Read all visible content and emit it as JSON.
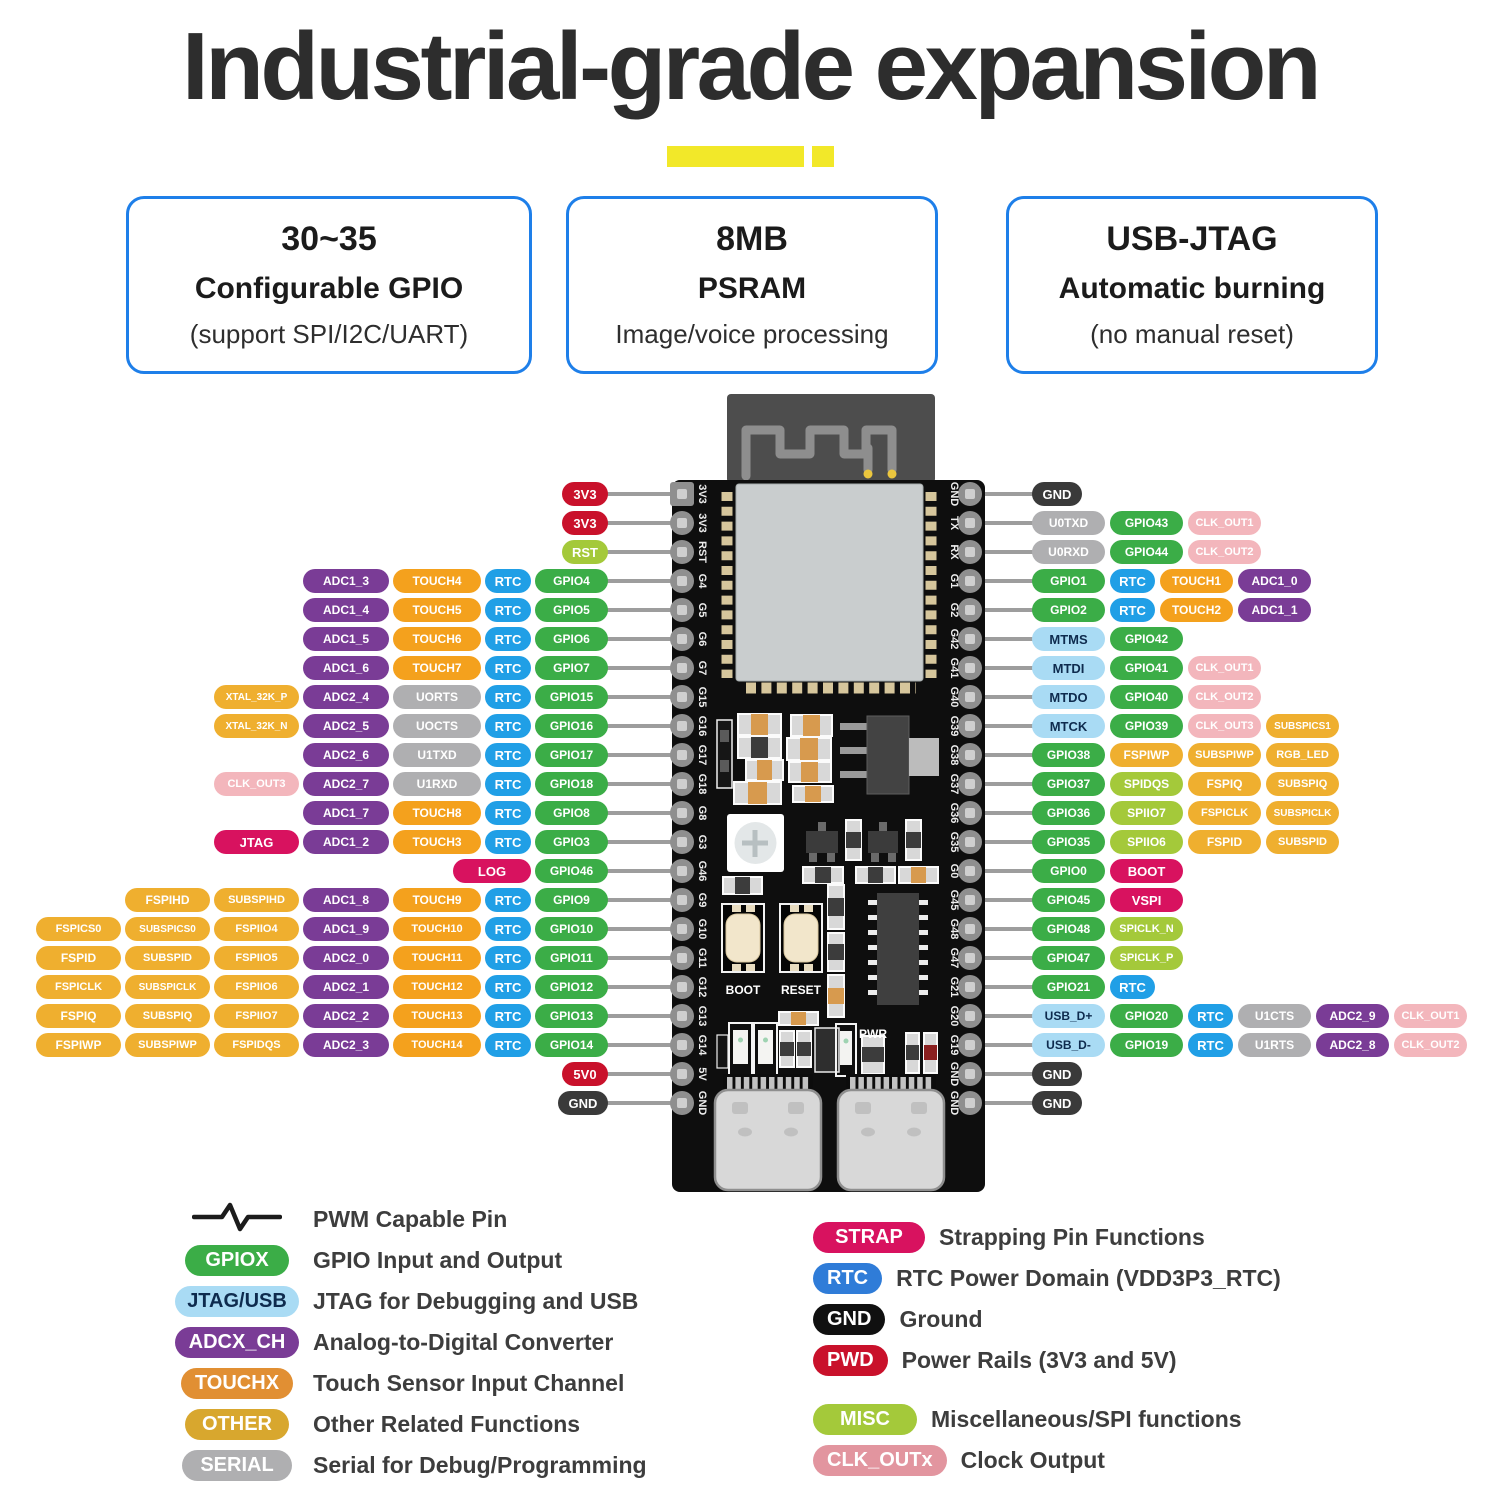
{
  "title": "Industrial-grade expansion",
  "feature_cards": [
    {
      "line1": "30~35",
      "line2": "Configurable GPIO",
      "line3": "(support SPI/I2C/UART)"
    },
    {
      "line1": "8MB",
      "line2": "PSRAM",
      "line3": "Image/voice processing"
    },
    {
      "line1": "USB-JTAG",
      "line2": "Automatic burning",
      "line3": "(no manual reset)"
    }
  ],
  "board": {
    "left_pin_labels": [
      "3V3",
      "3V3",
      "RST",
      "G4",
      "G5",
      "G6",
      "G7",
      "G15",
      "G16",
      "G17",
      "G18",
      "G8",
      "G3",
      "G46",
      "G9",
      "G10",
      "G11",
      "G12",
      "G13",
      "G14",
      "5V",
      "GND"
    ],
    "right_pin_labels": [
      "GND",
      "TX",
      "RX",
      "G1",
      "G2",
      "G42",
      "G41",
      "G40",
      "G39",
      "G38",
      "G37",
      "G36",
      "G35",
      "G0",
      "G45",
      "G48",
      "G47",
      "G21",
      "G20",
      "G19",
      "GND",
      "GND"
    ],
    "silkscreen": {
      "boot": "BOOT",
      "reset": "RESET",
      "pwr": "PWR",
      "tx_rx": "TX RX"
    }
  },
  "pin_rows": {
    "left": [
      [
        [
          "3V3",
          "pwd"
        ]
      ],
      [
        [
          "3V3",
          "pwd"
        ]
      ],
      [
        [
          "RST",
          "misc"
        ]
      ],
      [
        [
          "ADC1_3",
          "adc"
        ],
        [
          "TOUCH4",
          "touch"
        ],
        [
          "RTC",
          "rtc"
        ],
        [
          "GPIO4",
          "gpio"
        ]
      ],
      [
        [
          "ADC1_4",
          "adc"
        ],
        [
          "TOUCH5",
          "touch"
        ],
        [
          "RTC",
          "rtc"
        ],
        [
          "GPIO5",
          "gpio"
        ]
      ],
      [
        [
          "ADC1_5",
          "adc"
        ],
        [
          "TOUCH6",
          "touch"
        ],
        [
          "RTC",
          "rtc"
        ],
        [
          "GPIO6",
          "gpio"
        ]
      ],
      [
        [
          "ADC1_6",
          "adc"
        ],
        [
          "TOUCH7",
          "touch"
        ],
        [
          "RTC",
          "rtc"
        ],
        [
          "GPIO7",
          "gpio"
        ]
      ],
      [
        [
          "XTAL_32K_P",
          "other"
        ],
        [
          "ADC2_4",
          "adc"
        ],
        [
          "UORTS",
          "serial"
        ],
        [
          "RTC",
          "rtc"
        ],
        [
          "GPIO15",
          "gpio"
        ]
      ],
      [
        [
          "XTAL_32K_N",
          "other"
        ],
        [
          "ADC2_5",
          "adc"
        ],
        [
          "UOCTS",
          "serial"
        ],
        [
          "RTC",
          "rtc"
        ],
        [
          "GPIO16",
          "gpio"
        ]
      ],
      [
        [
          "ADC2_6",
          "adc"
        ],
        [
          "U1TXD",
          "serial"
        ],
        [
          "RTC",
          "rtc"
        ],
        [
          "GPIO17",
          "gpio"
        ]
      ],
      [
        [
          "CLK_OUT3",
          "clk"
        ],
        [
          "ADC2_7",
          "adc"
        ],
        [
          "U1RXD",
          "serial"
        ],
        [
          "RTC",
          "rtc"
        ],
        [
          "GPIO18",
          "gpio"
        ]
      ],
      [
        [
          "ADC1_7",
          "adc"
        ],
        [
          "TOUCH8",
          "touch"
        ],
        [
          "RTC",
          "rtc"
        ],
        [
          "GPIO8",
          "gpio"
        ]
      ],
      [
        [
          "JTAG",
          "strap"
        ],
        [
          "ADC1_2",
          "adc"
        ],
        [
          "TOUCH3",
          "touch"
        ],
        [
          "RTC",
          "rtc"
        ],
        [
          "GPIO3",
          "gpio"
        ]
      ],
      [
        [
          "LOG",
          "strap",
          78
        ],
        [
          "GPIO46",
          "gpio"
        ]
      ],
      [
        [
          "FSPIHD",
          "other"
        ],
        [
          "SUBSPIHD",
          "other"
        ],
        [
          "ADC1_8",
          "adc"
        ],
        [
          "TOUCH9",
          "touch"
        ],
        [
          "RTC",
          "rtc"
        ],
        [
          "GPIO9",
          "gpio"
        ]
      ],
      [
        [
          "FSPICS0",
          "other"
        ],
        [
          "SUBSPICS0",
          "other"
        ],
        [
          "FSPIIO4",
          "other"
        ],
        [
          "ADC1_9",
          "adc"
        ],
        [
          "TOUCH10",
          "touch"
        ],
        [
          "RTC",
          "rtc"
        ],
        [
          "GPIO10",
          "gpio"
        ]
      ],
      [
        [
          "FSPID",
          "other"
        ],
        [
          "SUBSPID",
          "other"
        ],
        [
          "FSPIIO5",
          "other"
        ],
        [
          "ADC2_0",
          "adc"
        ],
        [
          "TOUCH11",
          "touch"
        ],
        [
          "RTC",
          "rtc"
        ],
        [
          "GPIO11",
          "gpio"
        ]
      ],
      [
        [
          "FSPICLK",
          "other"
        ],
        [
          "SUBSPICLK",
          "other"
        ],
        [
          "FSPIIO6",
          "other"
        ],
        [
          "ADC2_1",
          "adc"
        ],
        [
          "TOUCH12",
          "touch"
        ],
        [
          "RTC",
          "rtc"
        ],
        [
          "GPIO12",
          "gpio"
        ]
      ],
      [
        [
          "FSPIQ",
          "other"
        ],
        [
          "SUBSPIQ",
          "other"
        ],
        [
          "FSPIIO7",
          "other"
        ],
        [
          "ADC2_2",
          "adc"
        ],
        [
          "TOUCH13",
          "touch"
        ],
        [
          "RTC",
          "rtc"
        ],
        [
          "GPIO13",
          "gpio"
        ]
      ],
      [
        [
          "FSPIWP",
          "other"
        ],
        [
          "SUBSPIWP",
          "other"
        ],
        [
          "FSPIDQS",
          "other"
        ],
        [
          "ADC2_3",
          "adc"
        ],
        [
          "TOUCH14",
          "touch"
        ],
        [
          "RTC",
          "rtc"
        ],
        [
          "GPIO14",
          "gpio"
        ]
      ],
      [
        [
          "5V0",
          "pwd"
        ]
      ],
      [
        [
          "GND",
          "gnd"
        ]
      ]
    ],
    "right": [
      [
        [
          "GND",
          "gnd"
        ]
      ],
      [
        [
          "U0TXD",
          "serial"
        ],
        [
          "GPIO43",
          "gpio"
        ],
        [
          "CLK_OUT1",
          "clk"
        ]
      ],
      [
        [
          "U0RXD",
          "serial"
        ],
        [
          "GPIO44",
          "gpio"
        ],
        [
          "CLK_OUT2",
          "clk"
        ]
      ],
      [
        [
          "GPIO1",
          "gpio"
        ],
        [
          "RTC",
          "rtc"
        ],
        [
          "TOUCH1",
          "touch"
        ],
        [
          "ADC1_0",
          "adc"
        ]
      ],
      [
        [
          "GPIO2",
          "gpio"
        ],
        [
          "RTC",
          "rtc"
        ],
        [
          "TOUCH2",
          "touch"
        ],
        [
          "ADC1_1",
          "adc"
        ]
      ],
      [
        [
          "MTMS",
          "jtagusb"
        ],
        [
          "GPIO42",
          "gpio"
        ]
      ],
      [
        [
          "MTDI",
          "jtagusb"
        ],
        [
          "GPIO41",
          "gpio"
        ],
        [
          "CLK_OUT1",
          "clk"
        ]
      ],
      [
        [
          "MTDO",
          "jtagusb"
        ],
        [
          "GPIO40",
          "gpio"
        ],
        [
          "CLK_OUT2",
          "clk"
        ]
      ],
      [
        [
          "MTCK",
          "jtagusb"
        ],
        [
          "GPIO39",
          "gpio"
        ],
        [
          "CLK_OUT3",
          "clk"
        ],
        [
          "SUBSPICS1",
          "other"
        ]
      ],
      [
        [
          "GPIO38",
          "gpio"
        ],
        [
          "FSPIWP",
          "other"
        ],
        [
          "SUBSPIWP",
          "other"
        ],
        [
          "RGB_LED",
          "other"
        ]
      ],
      [
        [
          "GPIO37",
          "gpio"
        ],
        [
          "SPIDQS",
          "misc"
        ],
        [
          "FSPIQ",
          "other"
        ],
        [
          "SUBSPIQ",
          "other"
        ]
      ],
      [
        [
          "GPIO36",
          "gpio"
        ],
        [
          "SPIIO7",
          "misc"
        ],
        [
          "FSPICLK",
          "other"
        ],
        [
          "SUBSPICLK",
          "other"
        ]
      ],
      [
        [
          "GPIO35",
          "gpio"
        ],
        [
          "SPIIO6",
          "misc"
        ],
        [
          "FSPID",
          "other"
        ],
        [
          "SUBSPID",
          "other"
        ]
      ],
      [
        [
          "GPIO0",
          "gpio"
        ],
        [
          "BOOT",
          "strap"
        ]
      ],
      [
        [
          "GPIO45",
          "gpio"
        ],
        [
          "VSPI",
          "strap"
        ]
      ],
      [
        [
          "GPIO48",
          "gpio"
        ],
        [
          "SPICLK_N",
          "misc"
        ]
      ],
      [
        [
          "GPIO47",
          "gpio"
        ],
        [
          "SPICLK_P",
          "misc"
        ]
      ],
      [
        [
          "GPIO21",
          "gpio"
        ],
        [
          "RTC",
          "rtc"
        ]
      ],
      [
        [
          "USB_D+",
          "jtagusb"
        ],
        [
          "GPIO20",
          "gpio"
        ],
        [
          "RTC",
          "rtc"
        ],
        [
          "U1CTS",
          "serial"
        ],
        [
          "ADC2_9",
          "adc"
        ],
        [
          "CLK_OUT1",
          "clk"
        ]
      ],
      [
        [
          "USB_D-",
          "jtagusb"
        ],
        [
          "GPIO19",
          "gpio"
        ],
        [
          "RTC",
          "rtc"
        ],
        [
          "U1RTS",
          "serial"
        ],
        [
          "ADC2_8",
          "adc"
        ],
        [
          "CLK_OUT2",
          "clk"
        ]
      ],
      [
        [
          "GND",
          "gnd"
        ]
      ],
      [
        [
          "GND",
          "gnd"
        ]
      ]
    ]
  },
  "legend": {
    "left": [
      {
        "badge": "",
        "type": "pwm",
        "desc": "PWM Capable Pin"
      },
      {
        "badge": "GPIOX",
        "type": "gpio",
        "desc": "GPIO Input and Output"
      },
      {
        "badge": "JTAG/USB",
        "type": "jtagusb",
        "desc": "JTAG for Debugging and USB"
      },
      {
        "badge": "ADCX_CH",
        "type": "adc",
        "desc": "Analog-to-Digital Converter"
      },
      {
        "badge": "TOUCHX",
        "type": "touch_legend",
        "desc": "Touch Sensor Input Channel"
      },
      {
        "badge": "OTHER",
        "type": "other_legend",
        "desc": "Other Related Functions"
      },
      {
        "badge": "SERIAL",
        "type": "serial",
        "desc": "Serial for Debug/Programming"
      }
    ],
    "right": [
      {
        "badge": "STRAP",
        "type": "strap",
        "desc": "Strapping Pin Functions"
      },
      {
        "badge": "RTC",
        "type": "rtc_legend",
        "desc": "RTC Power Domain (VDD3P3_RTC)"
      },
      {
        "badge": "GND",
        "type": "gnd_legend",
        "desc": "Ground"
      },
      {
        "badge": "PWD",
        "type": "pwd",
        "desc": "Power Rails (3V3 and 5V)"
      },
      {
        "badge": "MISC",
        "type": "misc",
        "desc": "Miscellaneous/SPI functions",
        "gap_before": true
      },
      {
        "badge": "CLK_OUTx",
        "type": "clk_legend",
        "desc": "Clock Output"
      }
    ]
  },
  "colors": {
    "gpio": "#3BAD47",
    "rtc": "#209FE6",
    "touch": "#F4A11D",
    "adc": "#7A3C96",
    "other": "#EFAF2F",
    "serial": "#AFAFB1",
    "strap": "#D8125F",
    "pwd": "#C9112B",
    "gnd": "#3A3A3A",
    "misc": "#A4C93A",
    "clk": "#F3B6BC",
    "jtagusb": "#A9DBF4",
    "jtagusb_text": "#0E2B4E",
    "touch_legend": "#E18F33",
    "other_legend": "#D8A72E",
    "rtc_legend": "#2F7CD8",
    "gnd_legend": "#101010",
    "clk_legend": "#E2959F",
    "accent_yellow": "#F2E829",
    "card_border": "#1E7FE9",
    "title": "#2D2D2D",
    "wire": "#9D9D9D"
  }
}
